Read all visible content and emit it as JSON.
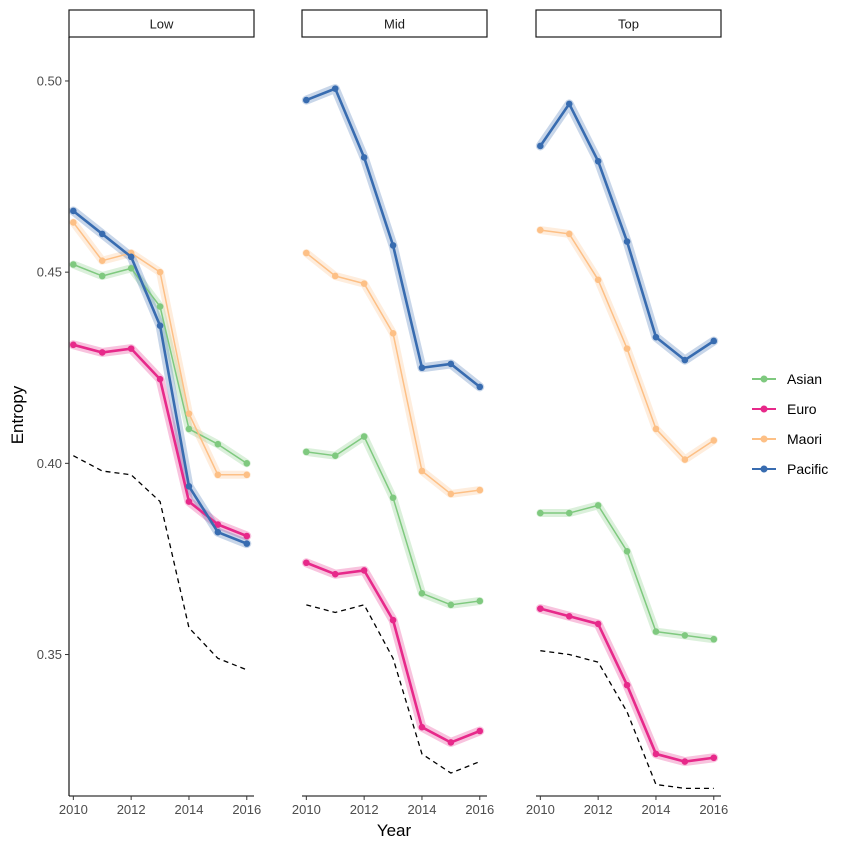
{
  "chart_data": {
    "type": "line",
    "xlabel": "Year",
    "ylabel": "Entropy",
    "x": [
      2010,
      2011,
      2012,
      2013,
      2014,
      2015,
      2016
    ],
    "x_ticks": [
      2010,
      2012,
      2014,
      2016
    ],
    "y_ticks": [
      0.35,
      0.4,
      0.45,
      0.5
    ],
    "y_tick_labels": [
      "0.35",
      "0.40",
      "0.45",
      "0.50"
    ],
    "x_tick_labels": [
      "2010",
      "2012",
      "2014",
      "2016"
    ],
    "xlim": [
      2009.85,
      2016.25
    ],
    "ylim": [
      0.313,
      0.5115
    ],
    "grid": false,
    "legend_position": "right",
    "series_colors": {
      "Asian": "#7fc97f",
      "Euro": "#e7298a",
      "Maori": "#fdc086",
      "Pacific": "#386cb0"
    },
    "legend": [
      "Asian",
      "Euro",
      "Maori",
      "Pacific"
    ],
    "panels": [
      {
        "label": "Low",
        "series": [
          {
            "name": "Asian",
            "values": [
              0.452,
              0.449,
              0.451,
              0.441,
              0.409,
              0.405,
              0.4
            ]
          },
          {
            "name": "Euro",
            "values": [
              0.431,
              0.429,
              0.43,
              0.422,
              0.39,
              0.384,
              0.381
            ]
          },
          {
            "name": "Maori",
            "values": [
              0.463,
              0.453,
              0.455,
              0.45,
              0.413,
              0.397,
              0.397
            ]
          },
          {
            "name": "Pacific",
            "values": [
              0.466,
              0.46,
              0.454,
              0.436,
              0.394,
              0.382,
              0.379
            ]
          }
        ],
        "reference": [
          0.402,
          0.398,
          0.397,
          0.39,
          0.357,
          0.349,
          0.346
        ]
      },
      {
        "label": "Mid",
        "series": [
          {
            "name": "Asian",
            "values": [
              0.403,
              0.402,
              0.407,
              0.391,
              0.366,
              0.363,
              0.364
            ]
          },
          {
            "name": "Euro",
            "values": [
              0.374,
              0.371,
              0.372,
              0.359,
              0.331,
              0.327,
              0.33
            ]
          },
          {
            "name": "Maori",
            "values": [
              0.455,
              0.449,
              0.447,
              0.434,
              0.398,
              0.392,
              0.393
            ]
          },
          {
            "name": "Pacific",
            "values": [
              0.495,
              0.498,
              0.48,
              0.457,
              0.425,
              0.426,
              0.42
            ]
          }
        ],
        "reference": [
          0.363,
          0.361,
          0.363,
          0.349,
          0.324,
          0.319,
          0.322
        ]
      },
      {
        "label": "Top",
        "series": [
          {
            "name": "Asian",
            "values": [
              0.387,
              0.387,
              0.389,
              0.377,
              0.356,
              0.355,
              0.354
            ]
          },
          {
            "name": "Euro",
            "values": [
              0.362,
              0.36,
              0.358,
              0.342,
              0.324,
              0.322,
              0.323
            ]
          },
          {
            "name": "Maori",
            "values": [
              0.461,
              0.46,
              0.448,
              0.43,
              0.409,
              0.401,
              0.406
            ]
          },
          {
            "name": "Pacific",
            "values": [
              0.483,
              0.494,
              0.479,
              0.458,
              0.433,
              0.427,
              0.432
            ]
          }
        ],
        "reference": [
          0.351,
          0.35,
          0.348,
          0.335,
          0.316,
          0.315,
          0.315
        ]
      }
    ]
  }
}
